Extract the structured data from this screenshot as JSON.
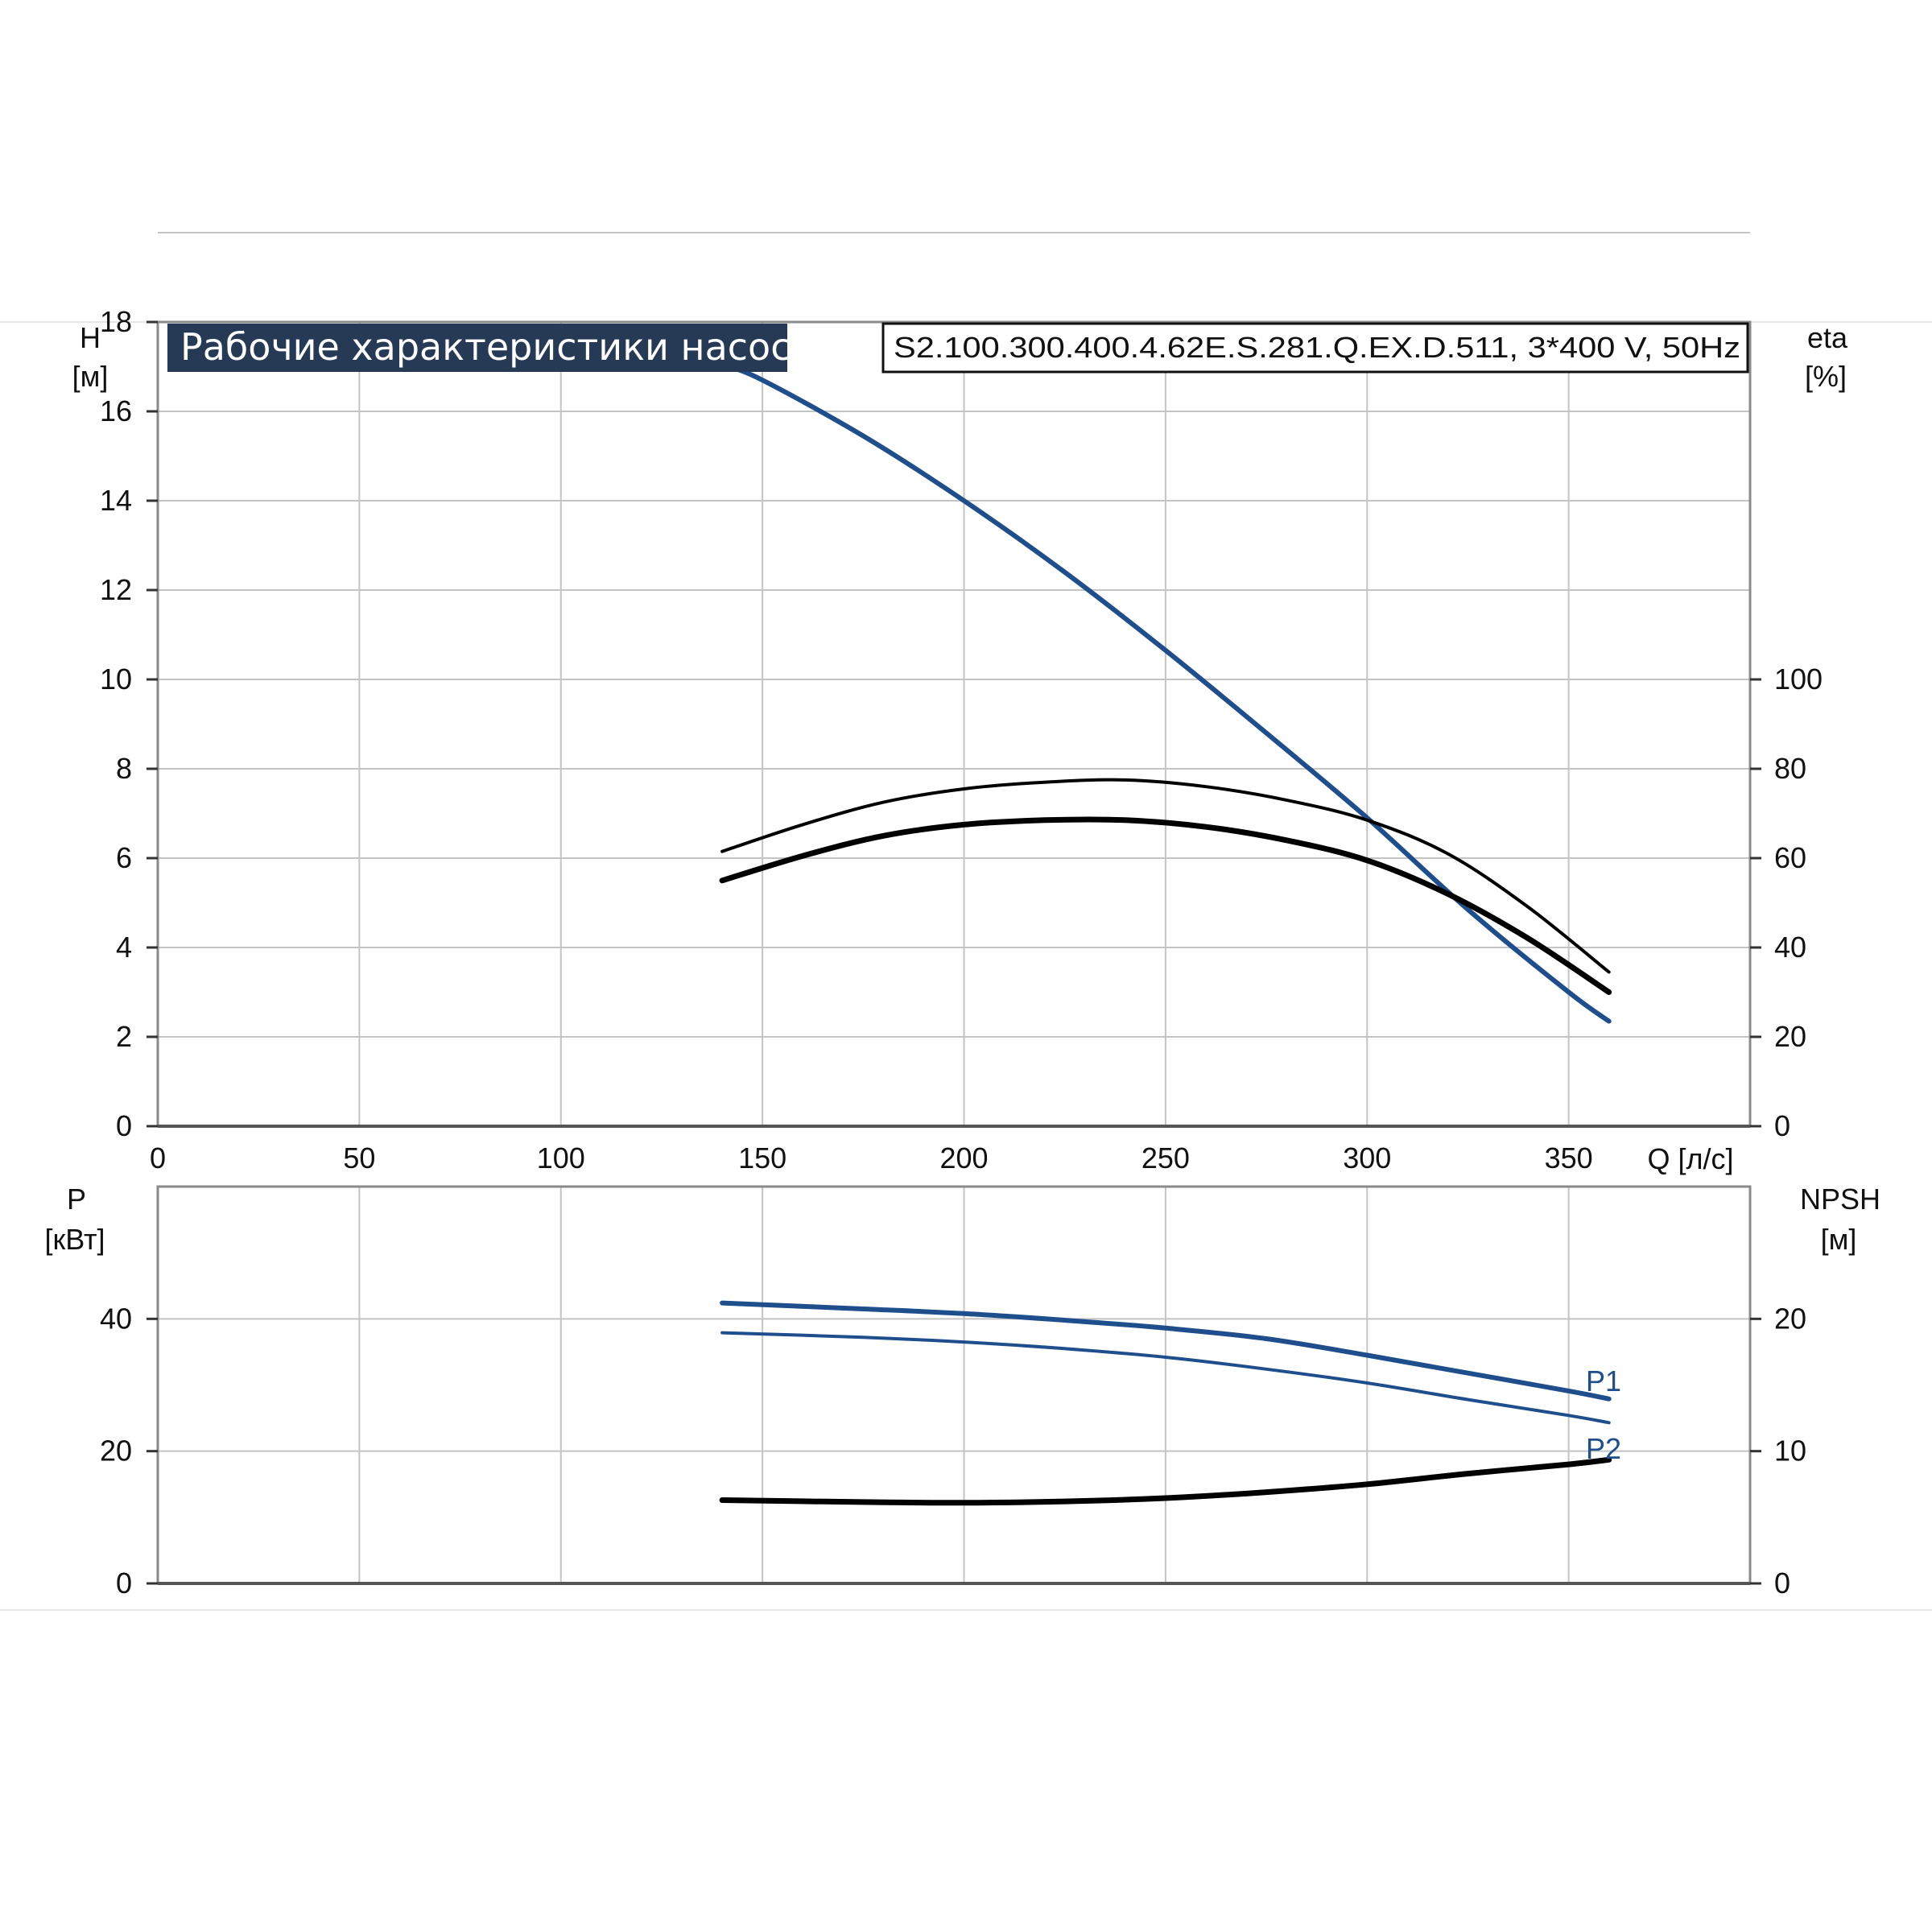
{
  "chart_data": [
    {
      "type": "line",
      "title": "Рабочие характеристики насоса",
      "model": "S2.100.300.400.4.62E.S.281.Q.EX.D.511, 3*400 V, 50Hz",
      "xlabel": "Q [л/с]",
      "x_ticks": [
        "0",
        "50",
        "100",
        "150",
        "200",
        "250",
        "300",
        "350"
      ],
      "xlim": [
        0,
        395
      ],
      "y_left": {
        "label": "H",
        "unit": "[м]",
        "ylim": [
          0,
          18
        ],
        "ticks": [
          "0",
          "2",
          "4",
          "6",
          "8",
          "10",
          "12",
          "14",
          "16",
          "18"
        ]
      },
      "y_right": {
        "label": "eta",
        "unit": "[%]",
        "ylim": [
          0,
          180
        ],
        "ticks": [
          "0",
          "20",
          "40",
          "60",
          "80",
          "100"
        ]
      },
      "grid": true,
      "series": [
        {
          "axis": "left",
          "color": "#1f4e8c",
          "x": [
            140,
            150,
            175,
            200,
            225,
            250,
            275,
            300,
            325,
            350,
            360
          ],
          "values": [
            17.05,
            16.7,
            15.45,
            14.0,
            12.4,
            10.65,
            8.8,
            6.9,
            4.85,
            3.0,
            2.35
          ]
        },
        {
          "axis": "right",
          "color": "#000000",
          "x": [
            140,
            160,
            180,
            200,
            220,
            240,
            260,
            280,
            300,
            320,
            340,
            360
          ],
          "values": [
            61.5,
            67.5,
            72.5,
            75.5,
            77.0,
            77.5,
            76.0,
            73.0,
            68.5,
            61.0,
            49.0,
            34.5
          ]
        },
        {
          "axis": "right",
          "color": "#000000",
          "x": [
            140,
            160,
            180,
            200,
            220,
            240,
            260,
            280,
            300,
            320,
            340,
            360
          ],
          "values": [
            55.0,
            60.5,
            65.0,
            67.5,
            68.5,
            68.5,
            67.0,
            64.0,
            59.5,
            52.0,
            42.0,
            30.0
          ]
        }
      ]
    },
    {
      "type": "line",
      "xlim": [
        0,
        395
      ],
      "y_left": {
        "label": "P",
        "unit": "[кВт]",
        "ylim": [
          0,
          60
        ],
        "ticks": [
          "0",
          "20",
          "40"
        ]
      },
      "y_right": {
        "label": "NPSH",
        "unit": "[м]",
        "ylim": [
          0,
          30
        ],
        "ticks": [
          "0",
          "10",
          "20"
        ]
      },
      "grid": true,
      "series": [
        {
          "name": "P1",
          "axis": "left",
          "color": "#1f4e8c",
          "x": [
            140,
            175,
            200,
            225,
            250,
            275,
            300,
            325,
            350,
            360
          ],
          "values": [
            42.4,
            41.5,
            40.8,
            39.8,
            38.6,
            37.0,
            34.5,
            31.8,
            29.1,
            27.9
          ]
        },
        {
          "name": "P2",
          "axis": "left",
          "color": "#1f4e8c",
          "x": [
            140,
            175,
            200,
            225,
            250,
            275,
            300,
            325,
            350,
            360
          ],
          "values": [
            37.9,
            37.2,
            36.5,
            35.5,
            34.2,
            32.4,
            30.3,
            27.8,
            25.4,
            24.3
          ]
        },
        {
          "axis": "right",
          "color": "#000000",
          "x": [
            140,
            175,
            200,
            225,
            250,
            275,
            300,
            325,
            350,
            360
          ],
          "values": [
            6.3,
            6.15,
            6.1,
            6.2,
            6.45,
            6.9,
            7.5,
            8.3,
            9.0,
            9.35
          ]
        }
      ]
    }
  ]
}
